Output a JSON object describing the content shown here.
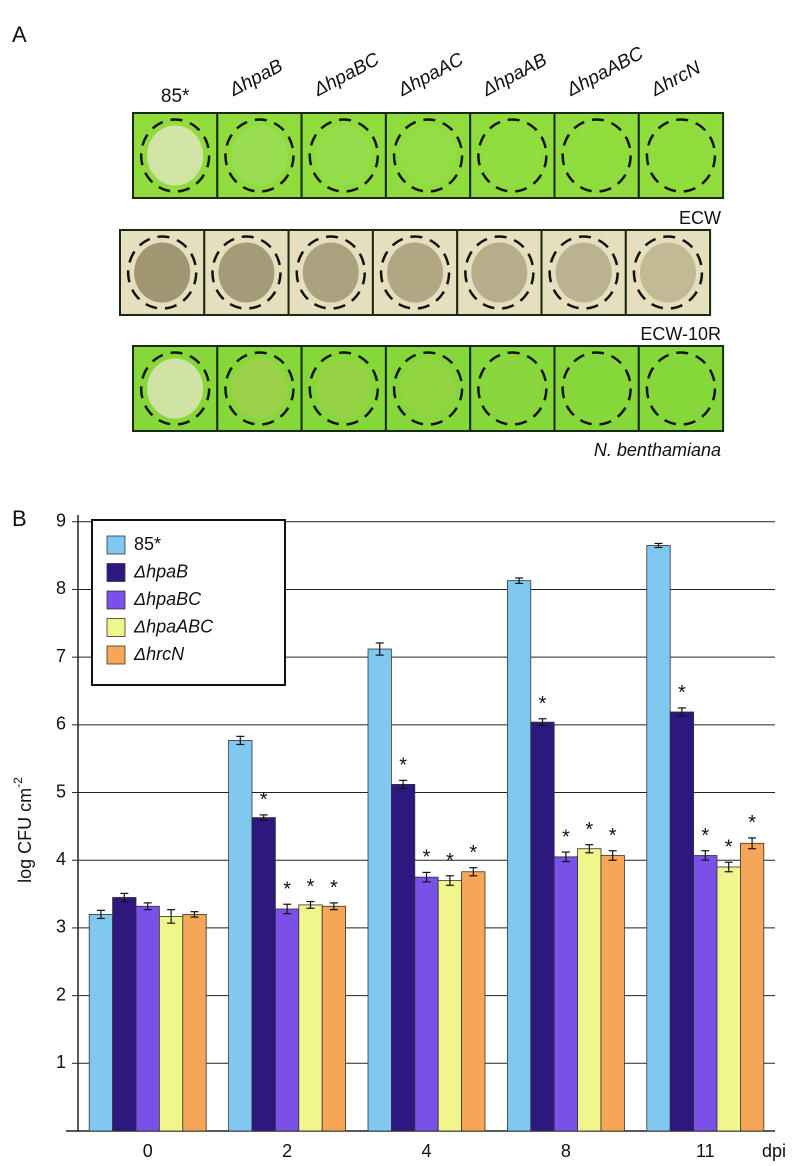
{
  "panel_a": {
    "label": "A",
    "columns": [
      "85*",
      "ΔhpaB",
      "ΔhpaBC",
      "ΔhpaAC",
      "ΔhpaAB",
      "ΔhpaABC",
      "ΔhrcN"
    ],
    "rows": [
      "ECW",
      "ECW-10R",
      "N. benthamiana"
    ]
  },
  "chart_data": {
    "type": "bar",
    "panel_label": "B",
    "ylabel": "log CFU cm",
    "ylabel_exponent": "-2",
    "xlabel": "dpi",
    "categories": [
      "0",
      "2",
      "4",
      "8",
      "11"
    ],
    "ylim": [
      0,
      9.1
    ],
    "yticks": [
      1,
      2,
      3,
      4,
      5,
      6,
      7,
      8,
      9
    ],
    "grid": true,
    "legend": "upper left",
    "series": [
      {
        "name": "85*",
        "color": "#80c8f0",
        "values": [
          3.2,
          5.77,
          7.12,
          8.13,
          8.65
        ],
        "errors": [
          0.06,
          0.06,
          0.09,
          0.04,
          0.03
        ]
      },
      {
        "name": "ΔhpaB",
        "color": "#2d1880",
        "values": [
          3.45,
          4.63,
          5.12,
          6.04,
          6.19
        ],
        "errors": [
          0.06,
          0.04,
          0.06,
          0.05,
          0.06
        ],
        "markers": [
          null,
          "*",
          "*",
          "*",
          "*"
        ]
      },
      {
        "name": "ΔhpaBC",
        "color": "#7b50e8",
        "values": [
          3.32,
          3.28,
          3.75,
          4.05,
          4.07
        ],
        "errors": [
          0.05,
          0.07,
          0.07,
          0.07,
          0.07
        ],
        "markers": [
          null,
          "*",
          "*",
          "*",
          "*"
        ]
      },
      {
        "name": "ΔhpaABC",
        "color": "#f0f68c",
        "values": [
          3.17,
          3.34,
          3.7,
          4.17,
          3.9
        ],
        "errors": [
          0.1,
          0.05,
          0.07,
          0.06,
          0.07
        ],
        "markers": [
          null,
          "*",
          "*",
          "*",
          "*"
        ]
      },
      {
        "name": "ΔhrcN",
        "color": "#f5a656",
        "values": [
          3.2,
          3.32,
          3.83,
          4.07,
          4.25
        ],
        "errors": [
          0.04,
          0.05,
          0.06,
          0.07,
          0.08
        ],
        "markers": [
          null,
          "*",
          "*",
          "*",
          "*"
        ]
      }
    ]
  }
}
